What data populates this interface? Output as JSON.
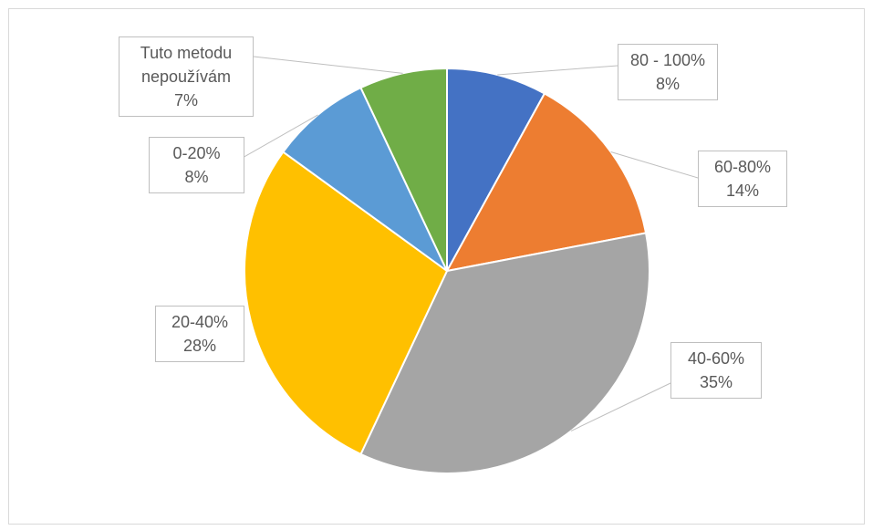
{
  "chart_data": {
    "type": "pie",
    "categories": [
      "80 - 100%",
      "60-80%",
      "40-60%",
      "20-40%",
      "0-20%",
      "Tuto metodu nepoužívám"
    ],
    "values": [
      8,
      14,
      35,
      28,
      8,
      7
    ],
    "value_labels": [
      "8%",
      "14%",
      "35%",
      "28%",
      "8%",
      "7%"
    ],
    "colors": [
      "#4472c4",
      "#ed7d31",
      "#a5a5a5",
      "#ffc000",
      "#5b9bd5",
      "#70ad47"
    ]
  }
}
